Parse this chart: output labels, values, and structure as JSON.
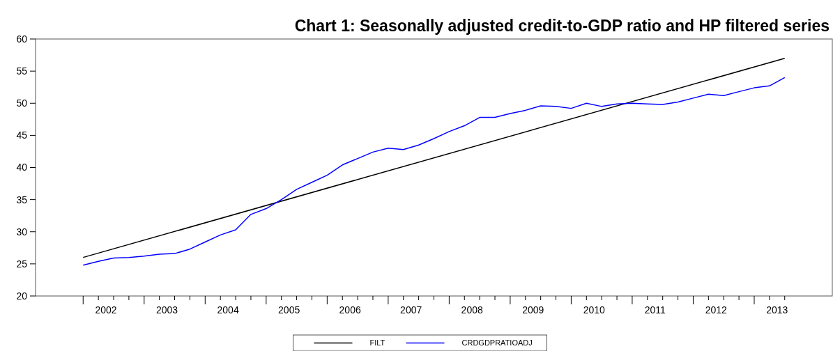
{
  "chart_data": {
    "type": "line",
    "title": "Chart 1: Seasonally adjusted credit-to-GDP ratio and HP filtered series",
    "xlim": [
      2001.22,
      2014.28
    ],
    "xticks": [
      {
        "value": 2002,
        "label": null
      },
      {
        "value": 2002.25,
        "label": null
      },
      {
        "value": 2002.375,
        "label": "2002"
      },
      {
        "value": 2002.5,
        "label": null
      },
      {
        "value": 2002.75,
        "label": null
      },
      {
        "value": 2003,
        "label": null
      },
      {
        "value": 2003.25,
        "label": null
      },
      {
        "value": 2003.375,
        "label": "2003"
      },
      {
        "value": 2003.5,
        "label": null
      },
      {
        "value": 2003.75,
        "label": null
      },
      {
        "value": 2004,
        "label": null
      },
      {
        "value": 2004.25,
        "label": null
      },
      {
        "value": 2004.375,
        "label": "2004"
      },
      {
        "value": 2004.5,
        "label": null
      },
      {
        "value": 2004.75,
        "label": null
      },
      {
        "value": 2005,
        "label": null
      },
      {
        "value": 2005.25,
        "label": null
      },
      {
        "value": 2005.375,
        "label": "2005"
      },
      {
        "value": 2005.5,
        "label": null
      },
      {
        "value": 2005.75,
        "label": null
      },
      {
        "value": 2006,
        "label": null
      },
      {
        "value": 2006.25,
        "label": null
      },
      {
        "value": 2006.375,
        "label": "2006"
      },
      {
        "value": 2006.5,
        "label": null
      },
      {
        "value": 2006.75,
        "label": null
      },
      {
        "value": 2007,
        "label": null
      },
      {
        "value": 2007.25,
        "label": null
      },
      {
        "value": 2007.375,
        "label": "2007"
      },
      {
        "value": 2007.5,
        "label": null
      },
      {
        "value": 2007.75,
        "label": null
      },
      {
        "value": 2008,
        "label": null
      },
      {
        "value": 2008.25,
        "label": null
      },
      {
        "value": 2008.375,
        "label": "2008"
      },
      {
        "value": 2008.5,
        "label": null
      },
      {
        "value": 2008.75,
        "label": null
      },
      {
        "value": 2009,
        "label": null
      },
      {
        "value": 2009.25,
        "label": null
      },
      {
        "value": 2009.375,
        "label": "2009"
      },
      {
        "value": 2009.5,
        "label": null
      },
      {
        "value": 2009.75,
        "label": null
      },
      {
        "value": 2010,
        "label": null
      },
      {
        "value": 2010.25,
        "label": null
      },
      {
        "value": 2010.375,
        "label": "2010"
      },
      {
        "value": 2010.5,
        "label": null
      },
      {
        "value": 2010.75,
        "label": null
      },
      {
        "value": 2011,
        "label": null
      },
      {
        "value": 2011.25,
        "label": null
      },
      {
        "value": 2011.375,
        "label": "2011"
      },
      {
        "value": 2011.5,
        "label": null
      },
      {
        "value": 2011.75,
        "label": null
      },
      {
        "value": 2012,
        "label": null
      },
      {
        "value": 2012.25,
        "label": null
      },
      {
        "value": 2012.375,
        "label": "2012"
      },
      {
        "value": 2012.5,
        "label": null
      },
      {
        "value": 2012.75,
        "label": null
      },
      {
        "value": 2013,
        "label": null
      },
      {
        "value": 2013.25,
        "label": null
      },
      {
        "value": 2013.375,
        "label": "2013"
      },
      {
        "value": 2013.5,
        "label": null
      }
    ],
    "ylim": [
      20,
      60
    ],
    "yticks": [
      20,
      25,
      30,
      35,
      40,
      45,
      50,
      55,
      60
    ],
    "grid": false,
    "legend": "bottom",
    "line_style": "solid",
    "marker": "none",
    "series": [
      {
        "name": "FILT",
        "color": "#000000",
        "x": [
          2002,
          2013.5
        ],
        "values": [
          26.0,
          57.0
        ]
      },
      {
        "name": "CRDGDPRATIOADJ",
        "color": "#0000ff",
        "x": [
          2002,
          2002.25,
          2002.5,
          2002.75,
          2003,
          2003.25,
          2003.5,
          2003.75,
          2004,
          2004.25,
          2004.5,
          2004.75,
          2005,
          2005.25,
          2005.5,
          2005.75,
          2006,
          2006.25,
          2006.5,
          2006.75,
          2007,
          2007.25,
          2007.5,
          2007.75,
          2008,
          2008.25,
          2008.5,
          2008.75,
          2009,
          2009.25,
          2009.5,
          2009.75,
          2010,
          2010.25,
          2010.5,
          2010.75,
          2011,
          2011.25,
          2011.5,
          2011.75,
          2012,
          2012.25,
          2012.5,
          2012.75,
          2013,
          2013.25,
          2013.5
        ],
        "values": [
          24.8,
          25.4,
          25.9,
          26.0,
          26.2,
          26.5,
          26.6,
          27.3,
          28.4,
          29.5,
          30.3,
          32.7,
          33.6,
          35.0,
          36.6,
          37.7,
          38.8,
          40.4,
          41.4,
          42.4,
          43.0,
          42.8,
          43.5,
          44.5,
          45.6,
          46.5,
          47.8,
          47.8,
          48.4,
          48.9,
          49.6,
          49.5,
          49.2,
          50.0,
          49.5,
          49.9,
          50.0,
          49.9,
          49.8,
          50.2,
          50.8,
          51.4,
          51.2,
          51.8,
          52.4,
          52.7,
          54.0
        ]
      }
    ]
  }
}
